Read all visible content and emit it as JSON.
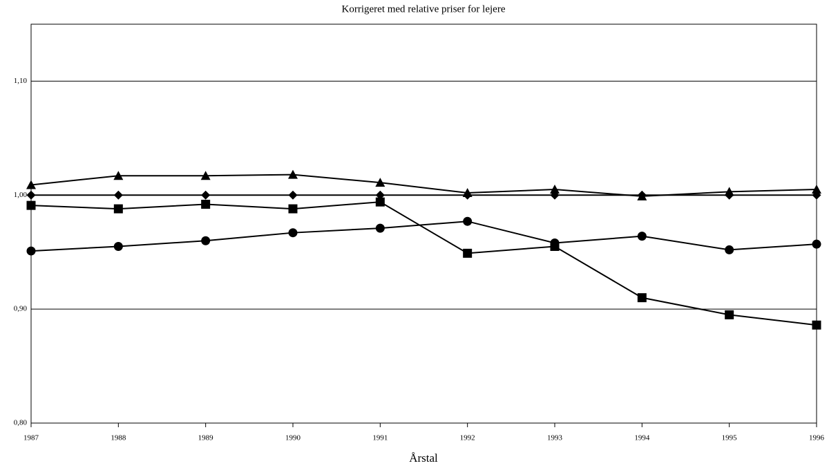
{
  "chart_data": {
    "type": "line",
    "title": "Korrigeret med relative priser for lejere",
    "x_label": "Årstal",
    "x": [
      1987,
      1988,
      1989,
      1990,
      1991,
      1992,
      1993,
      1994,
      1995,
      1996
    ],
    "xlim": [
      1987,
      1996
    ],
    "xticks": [
      1987,
      1988,
      1989,
      1990,
      1991,
      1992,
      1993,
      1994,
      1995,
      1996
    ],
    "ylim": [
      0.8,
      1.15
    ],
    "yticks": [
      {
        "value": 0.8,
        "label": "0,80"
      },
      {
        "value": 0.9,
        "label": "0,90"
      },
      {
        "value": 1.0,
        "label": "1,00"
      },
      {
        "value": 1.1,
        "label": "1,10"
      }
    ],
    "grid": true,
    "series": [
      {
        "marker": "diamond",
        "color": "#000000",
        "values": [
          1.0,
          1.0,
          1.0,
          1.0,
          1.0,
          1.0,
          1.0,
          1.0,
          1.0,
          1.0
        ]
      },
      {
        "marker": "square",
        "color": "#000000",
        "values": [
          0.991,
          0.988,
          0.992,
          0.988,
          0.994,
          0.949,
          0.955,
          0.91,
          0.895,
          0.886
        ]
      },
      {
        "marker": "triangle",
        "color": "#000000",
        "values": [
          1.009,
          1.017,
          1.017,
          1.018,
          1.011,
          1.002,
          1.005,
          0.999,
          1.003,
          1.005
        ]
      },
      {
        "marker": "circle",
        "color": "#000000",
        "values": [
          0.951,
          0.955,
          0.96,
          0.967,
          0.971,
          0.977,
          0.958,
          0.964,
          0.952,
          0.957
        ]
      }
    ]
  }
}
